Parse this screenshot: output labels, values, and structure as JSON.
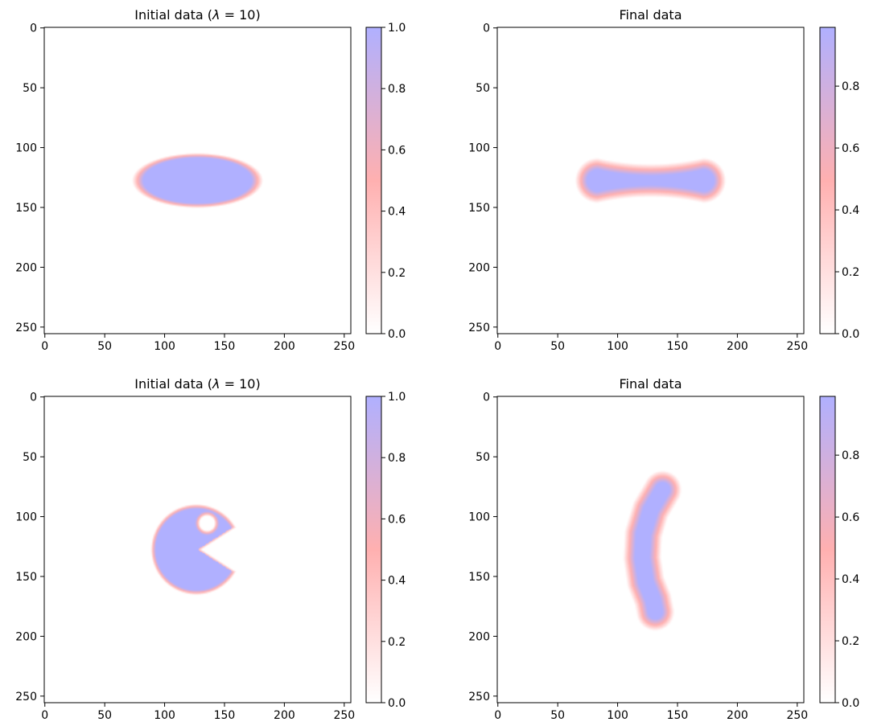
{
  "chart_data": [
    {
      "type": "heatmap",
      "title": "Initial data (λ = 10)",
      "title_parts": {
        "pre": "Initial data (",
        "lam": "λ",
        "post": " = 10)"
      },
      "shape": "ellipse",
      "shape_params": {
        "center_x": 128,
        "center_y": 128,
        "radius_x": 50,
        "radius_y": 21
      },
      "blur_width": 2,
      "xlim": [
        0,
        255
      ],
      "ylim": [
        255,
        0
      ],
      "xticks": [
        0,
        50,
        100,
        150,
        200,
        250
      ],
      "yticks": [
        0,
        50,
        100,
        150,
        200,
        250
      ],
      "colorbar": {
        "range": [
          0,
          1
        ],
        "ticks": [
          0.0,
          0.2,
          0.4,
          0.6,
          0.8,
          1.0
        ],
        "labels": [
          "0.0",
          "0.2",
          "0.4",
          "0.6",
          "0.8",
          "1.0"
        ]
      }
    },
    {
      "type": "heatmap",
      "title": "Final data",
      "shape": "dumbbell",
      "shape_params": {
        "x_start": 70,
        "x_end": 186,
        "center_y": 128,
        "end_half_height": 14,
        "neck_half_height": 9
      },
      "blur_width": 5,
      "xlim": [
        0,
        255
      ],
      "ylim": [
        255,
        0
      ],
      "xticks": [
        0,
        50,
        100,
        150,
        200,
        250
      ],
      "yticks": [
        0,
        50,
        100,
        150,
        200,
        250
      ],
      "colorbar": {
        "range": [
          0,
          0.99
        ],
        "ticks": [
          0.0,
          0.2,
          0.4,
          0.6,
          0.8
        ],
        "labels": [
          "0.0",
          "0.2",
          "0.4",
          "0.6",
          "0.8"
        ]
      }
    },
    {
      "type": "heatmap",
      "title": "Initial data (λ = 10)",
      "title_parts": {
        "pre": "Initial data (",
        "lam": "λ",
        "post": " = 10)"
      },
      "shape": "pacman",
      "shape_params": {
        "center_x": 127,
        "center_y": 128,
        "radius": 36,
        "mouth_upper_x": 158,
        "mouth_upper_y": 109,
        "mouth_lower_x": 158,
        "mouth_lower_y": 147,
        "mouth_apex_x": 128,
        "mouth_apex_y": 128,
        "eye_x": 136,
        "eye_y": 106,
        "eye_radius": 8
      },
      "blur_width": 2,
      "xlim": [
        0,
        255
      ],
      "ylim": [
        255,
        0
      ],
      "xticks": [
        0,
        50,
        100,
        150,
        200,
        250
      ],
      "yticks": [
        0,
        50,
        100,
        150,
        200,
        250
      ],
      "colorbar": {
        "range": [
          0,
          1
        ],
        "ticks": [
          0.0,
          0.2,
          0.4,
          0.6,
          0.8,
          1.0
        ],
        "labels": [
          "0.0",
          "0.2",
          "0.4",
          "0.6",
          "0.8",
          "1.0"
        ]
      }
    },
    {
      "type": "heatmap",
      "title": "Final data",
      "shape": "banana",
      "shape_params": {
        "centerline": [
          [
            138,
            78
          ],
          [
            128,
            95
          ],
          [
            122,
            115
          ],
          [
            121,
            135
          ],
          [
            124,
            155
          ],
          [
            130,
            170
          ],
          [
            132,
            180
          ]
        ],
        "half_width": 11
      },
      "blur_width": 5,
      "xlim": [
        0,
        255
      ],
      "ylim": [
        255,
        0
      ],
      "xticks": [
        0,
        50,
        100,
        150,
        200,
        250
      ],
      "yticks": [
        0,
        50,
        100,
        150,
        200,
        250
      ],
      "colorbar": {
        "range": [
          0,
          0.99
        ],
        "ticks": [
          0.0,
          0.2,
          0.4,
          0.6,
          0.8
        ],
        "labels": [
          "0.0",
          "0.2",
          "0.4",
          "0.6",
          "0.8"
        ]
      }
    }
  ],
  "colors": {
    "zero": "#ffffff",
    "mid": "#ffb0b0",
    "one": "#b0b0ff",
    "axes": "#000000"
  }
}
